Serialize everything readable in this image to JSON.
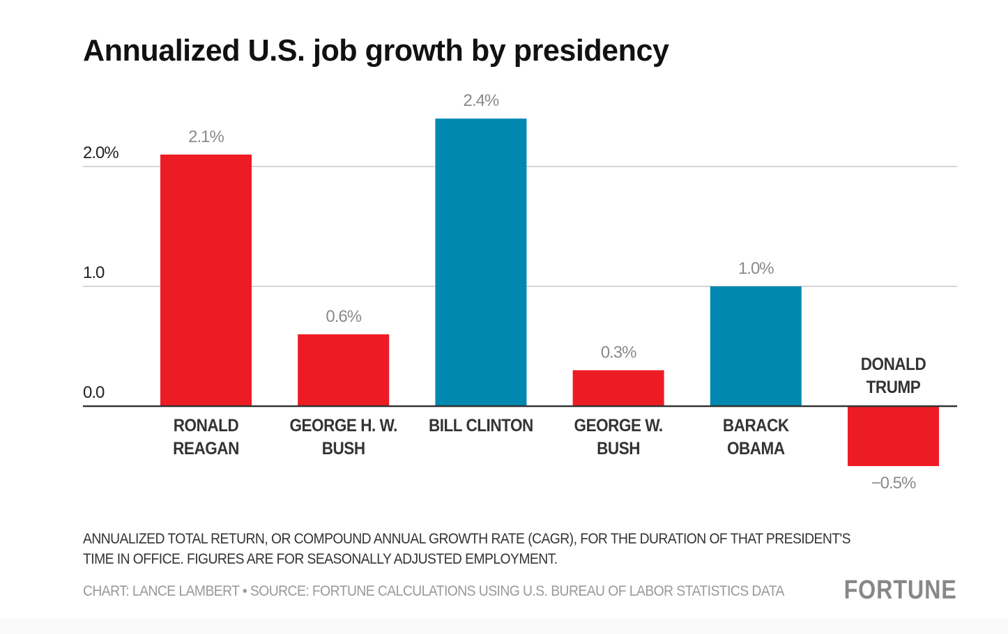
{
  "chart_data": {
    "type": "bar",
    "title": "Annualized U.S. job growth by presidency",
    "xlabel": "",
    "ylabel": "",
    "ylim": [
      -0.5,
      2.4
    ],
    "yticks": [
      0.0,
      1.0,
      2.0
    ],
    "ytick_labels": [
      "0.0",
      "1.0",
      "2.0%"
    ],
    "grid": true,
    "categories": [
      "RONALD REAGAN",
      "GEORGE H. W. BUSH",
      "BILL CLINTON",
      "GEORGE W. BUSH",
      "BARACK OBAMA",
      "DONALD TRUMP"
    ],
    "category_lines": [
      [
        "RONALD",
        "REAGAN"
      ],
      [
        "GEORGE H. W.",
        "BUSH"
      ],
      [
        "BILL CLINTON"
      ],
      [
        "GEORGE W.",
        "BUSH"
      ],
      [
        "BARACK",
        "OBAMA"
      ],
      [
        "DONALD",
        "TRUMP"
      ]
    ],
    "values": [
      2.1,
      0.6,
      2.4,
      0.3,
      1.0,
      -0.5
    ],
    "data_labels": [
      "2.1%",
      "0.6%",
      "2.4%",
      "0.3%",
      "1.0%",
      "−0.5%"
    ],
    "party": [
      "Republican",
      "Republican",
      "Democrat",
      "Republican",
      "Democrat",
      "Republican"
    ],
    "colors": {
      "Republican": "#ed1c24",
      "Democrat": "#0088b0"
    }
  },
  "notes": {
    "line1": "ANNUALIZED TOTAL RETURN, OR COMPOUND ANNUAL GROWTH RATE (CAGR), FOR THE DURATION OF THAT PRESIDENT'S",
    "line2": "TIME IN OFFICE. FIGURES ARE FOR SEASONALLY ADJUSTED EMPLOYMENT."
  },
  "credit": "CHART: LANCE LAMBERT • SOURCE: FORTUNE CALCULATIONS USING U.S. BUREAU OF LABOR STATISTICS DATA",
  "brand": "FORTUNE"
}
